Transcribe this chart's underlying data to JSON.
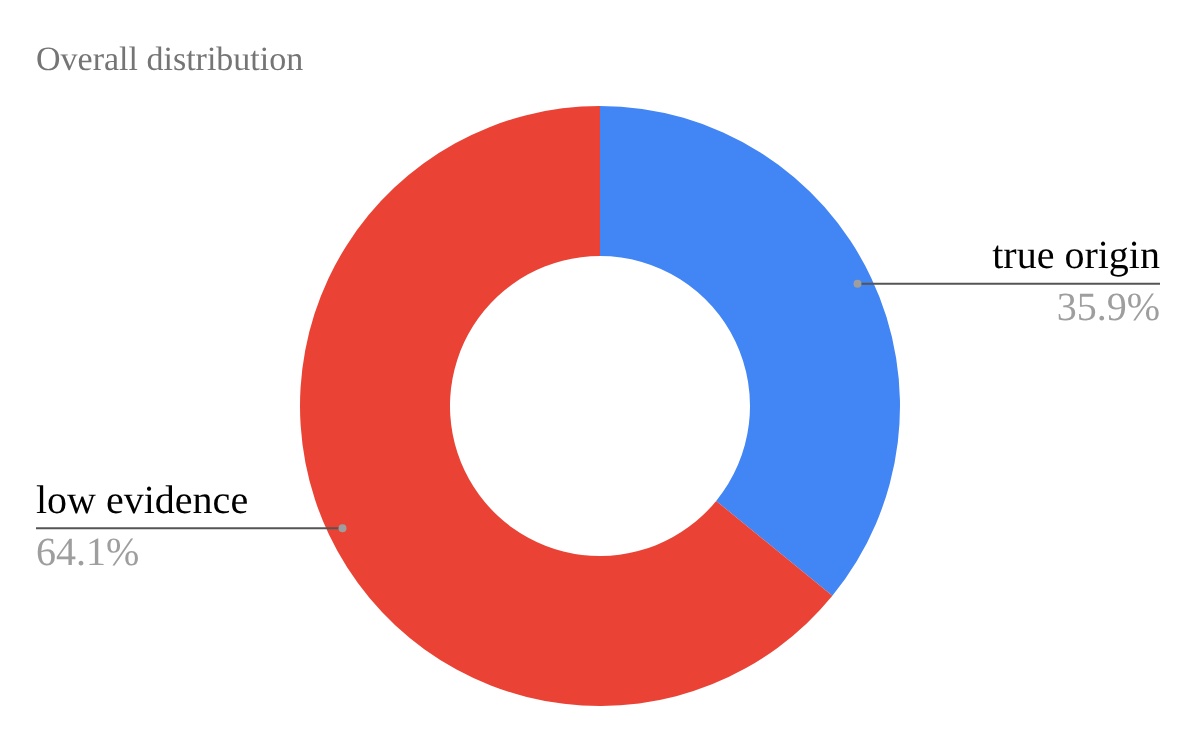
{
  "chart_data": {
    "type": "donut",
    "title": "Overall distribution",
    "categories": [
      "true origin",
      "low evidence"
    ],
    "values": [
      35.9,
      64.1
    ],
    "value_labels": [
      "35.9%",
      "64.1%"
    ],
    "colors": [
      "#4285f4",
      "#ea4335"
    ],
    "legend": false
  }
}
